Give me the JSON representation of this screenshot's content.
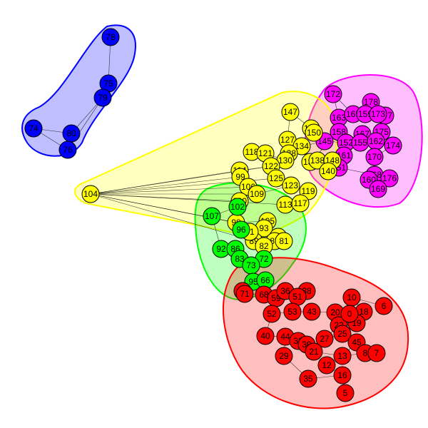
{
  "colors": {
    "blue": "#0000ff",
    "magenta": "#ff00ff",
    "yellow": "#ffff00",
    "green": "#00ff00",
    "red": "#ff0000"
  },
  "communities": [
    {
      "id": "blue",
      "color": "#0000ff",
      "fill": "rgba(0,0,255,0.25)"
    },
    {
      "id": "magenta",
      "color": "#ff00ff",
      "fill": "rgba(255,0,255,0.25)"
    },
    {
      "id": "yellow",
      "color": "#ffff00",
      "fill": "rgba(255,255,0,0.25)"
    },
    {
      "id": "green",
      "color": "#00ff00",
      "fill": "rgba(0,255,0,0.25)"
    },
    {
      "id": "red",
      "color": "#ff0000",
      "fill": "rgba(255,0,0,0.25)"
    }
  ],
  "nodes": [
    {
      "label": "78",
      "group": "blue"
    },
    {
      "label": "75",
      "group": "blue"
    },
    {
      "label": "79",
      "group": "blue"
    },
    {
      "label": "74",
      "group": "blue"
    },
    {
      "label": "80",
      "group": "blue"
    },
    {
      "label": "76",
      "group": "blue"
    },
    {
      "label": "172",
      "group": "magenta"
    },
    {
      "label": "178",
      "group": "magenta"
    },
    {
      "label": "163",
      "group": "magenta"
    },
    {
      "label": "165",
      "group": "magenta"
    },
    {
      "label": "159",
      "group": "magenta"
    },
    {
      "label": "177",
      "group": "magenta"
    },
    {
      "label": "173",
      "group": "magenta"
    },
    {
      "label": "158",
      "group": "magenta"
    },
    {
      "label": "167",
      "group": "magenta"
    },
    {
      "label": "175",
      "group": "magenta"
    },
    {
      "label": "145",
      "group": "magenta"
    },
    {
      "label": "152",
      "group": "magenta"
    },
    {
      "label": "155",
      "group": "magenta"
    },
    {
      "label": "162",
      "group": "magenta"
    },
    {
      "label": "174",
      "group": "magenta"
    },
    {
      "label": "161",
      "group": "magenta"
    },
    {
      "label": "170",
      "group": "magenta"
    },
    {
      "label": "151",
      "group": "magenta"
    },
    {
      "label": "168",
      "group": "magenta"
    },
    {
      "label": "160",
      "group": "magenta"
    },
    {
      "label": "176",
      "group": "magenta"
    },
    {
      "label": "169",
      "group": "magenta"
    },
    {
      "label": "147",
      "group": "yellow"
    },
    {
      "label": "144",
      "group": "yellow"
    },
    {
      "label": "150",
      "group": "yellow"
    },
    {
      "label": "127",
      "group": "yellow"
    },
    {
      "label": "134",
      "group": "yellow"
    },
    {
      "label": "118",
      "group": "yellow"
    },
    {
      "label": "121",
      "group": "yellow"
    },
    {
      "label": "128",
      "group": "yellow"
    },
    {
      "label": "130",
      "group": "yellow"
    },
    {
      "label": "137",
      "group": "yellow"
    },
    {
      "label": "138",
      "group": "yellow"
    },
    {
      "label": "148",
      "group": "yellow"
    },
    {
      "label": "122",
      "group": "yellow"
    },
    {
      "label": "114",
      "group": "yellow"
    },
    {
      "label": "99",
      "group": "yellow"
    },
    {
      "label": "125",
      "group": "yellow"
    },
    {
      "label": "140",
      "group": "yellow"
    },
    {
      "label": "104",
      "group": "yellow"
    },
    {
      "label": "106",
      "group": "yellow"
    },
    {
      "label": "109",
      "group": "yellow"
    },
    {
      "label": "123",
      "group": "yellow"
    },
    {
      "label": "119",
      "group": "yellow"
    },
    {
      "label": "100",
      "group": "yellow"
    },
    {
      "label": "113",
      "group": "yellow"
    },
    {
      "label": "117",
      "group": "yellow"
    },
    {
      "label": "98",
      "group": "yellow"
    },
    {
      "label": "105",
      "group": "yellow"
    },
    {
      "label": "93",
      "group": "yellow"
    },
    {
      "label": "84",
      "group": "yellow"
    },
    {
      "label": "87",
      "group": "yellow"
    },
    {
      "label": "81",
      "group": "yellow"
    },
    {
      "label": "89",
      "group": "yellow"
    },
    {
      "label": "82",
      "group": "yellow"
    },
    {
      "label": "91",
      "group": "yellow"
    },
    {
      "label": "107",
      "group": "green"
    },
    {
      "label": "102",
      "group": "green"
    },
    {
      "label": "96",
      "group": "green"
    },
    {
      "label": "92",
      "group": "green"
    },
    {
      "label": "86",
      "group": "green"
    },
    {
      "label": "83",
      "group": "green"
    },
    {
      "label": "72",
      "group": "green"
    },
    {
      "label": "73",
      "group": "green"
    },
    {
      "label": "95",
      "group": "green"
    },
    {
      "label": "66",
      "group": "green"
    },
    {
      "label": "77",
      "group": "red"
    },
    {
      "label": "71",
      "group": "red"
    },
    {
      "label": "68",
      "group": "red"
    },
    {
      "label": "59",
      "group": "red"
    },
    {
      "label": "36",
      "group": "red"
    },
    {
      "label": "38",
      "group": "red"
    },
    {
      "label": "51",
      "group": "red"
    },
    {
      "label": "10",
      "group": "red"
    },
    {
      "label": "6",
      "group": "red"
    },
    {
      "label": "52",
      "group": "red"
    },
    {
      "label": "53",
      "group": "red"
    },
    {
      "label": "43",
      "group": "red"
    },
    {
      "label": "20",
      "group": "red"
    },
    {
      "label": "18",
      "group": "red"
    },
    {
      "label": "19",
      "group": "red"
    },
    {
      "label": "22",
      "group": "red"
    },
    {
      "label": "40",
      "group": "red"
    },
    {
      "label": "44",
      "group": "red"
    },
    {
      "label": "32",
      "group": "red"
    },
    {
      "label": "30",
      "group": "red"
    },
    {
      "label": "27",
      "group": "red"
    },
    {
      "label": "25",
      "group": "red"
    },
    {
      "label": "45",
      "group": "red"
    },
    {
      "label": "29",
      "group": "red"
    },
    {
      "label": "21",
      "group": "red"
    },
    {
      "label": "13",
      "group": "red"
    },
    {
      "label": "8",
      "group": "red"
    },
    {
      "label": "7",
      "group": "red"
    },
    {
      "label": "35",
      "group": "red"
    },
    {
      "label": "16",
      "group": "red"
    },
    {
      "label": "5",
      "group": "red"
    },
    {
      "label": "12",
      "group": "red"
    },
    {
      "label": "0",
      "group": "red"
    }
  ]
}
